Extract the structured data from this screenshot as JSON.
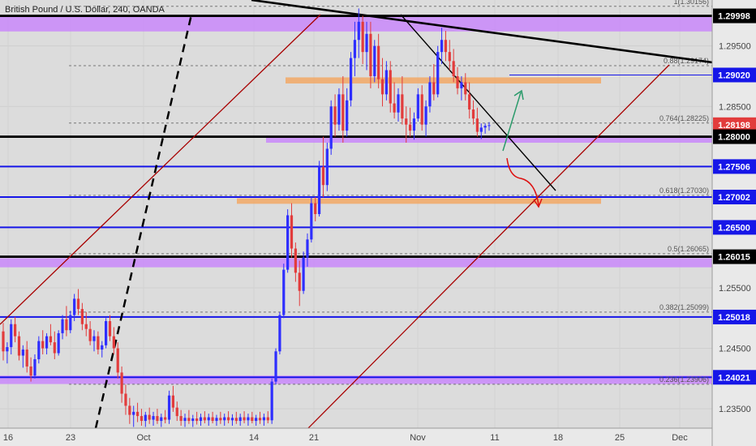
{
  "title": "British Pound / U.S. Dollar, 240, OANDA",
  "colors": {
    "background": "#dcdcdc",
    "axis_bg": "#e9e9e9",
    "bull": "#2e2eff",
    "bear": "#e23c3c",
    "support_blue": "#1616e8",
    "black_line": "#000000",
    "zone_purple": "#c77dff",
    "zone_orange": "#f2a865",
    "channel_red": "#a80000",
    "arrow_green": "#2a9a6a",
    "arrow_red": "#d11"
  },
  "chart_data": {
    "type": "candlestick",
    "title": "British Pound / U.S. Dollar, 240, OANDA",
    "xlabel": "",
    "ylabel": "",
    "y_axis_ticks": [
      "1.29500",
      "1.28500",
      "1.27500",
      "1.26500",
      "1.25500",
      "1.24500",
      "1.23500"
    ],
    "x_axis_ticks": [
      "16",
      "23",
      "Oct",
      "14",
      "21",
      "Nov",
      "11",
      "18",
      "25",
      "Dec"
    ],
    "ylim": [
      1.2318,
      1.3026
    ],
    "price_labels": [
      {
        "value": "1.29998",
        "color": "black"
      },
      {
        "value": "1.29020",
        "color": "blue"
      },
      {
        "value": "1.28198",
        "color": "red"
      },
      {
        "value": "1.28000",
        "color": "black"
      },
      {
        "value": "1.27506",
        "color": "blue"
      },
      {
        "value": "1.27002",
        "color": "blue"
      },
      {
        "value": "1.26500",
        "color": "blue"
      },
      {
        "value": "1.26015",
        "color": "black"
      },
      {
        "value": "1.25018",
        "color": "blue"
      },
      {
        "value": "1.24021",
        "color": "blue"
      }
    ],
    "fib_levels": [
      {
        "label": "1(1.30156)",
        "value": 1.30156
      },
      {
        "label": "0.88(1.29174)",
        "value": 1.29174
      },
      {
        "label": "0.764(1.28225)",
        "value": 1.28225
      },
      {
        "label": "0.618(1.27030)",
        "value": 1.2703
      },
      {
        "label": "0.5(1.26065)",
        "value": 1.26065
      },
      {
        "label": "0.382(1.25099)",
        "value": 1.25099
      },
      {
        "label": "0.236(1.23906)",
        "value": 1.23906
      }
    ],
    "horizontal_levels": [
      {
        "value": 1.29998,
        "color": "black"
      },
      {
        "value": 1.2902,
        "color": "blue"
      },
      {
        "value": 1.28,
        "color": "black"
      },
      {
        "value": 1.27506,
        "color": "blue"
      },
      {
        "value": 1.27002,
        "color": "blue"
      },
      {
        "value": 1.265,
        "color": "blue"
      },
      {
        "value": 1.26015,
        "color": "black"
      },
      {
        "value": 1.25018,
        "color": "blue"
      },
      {
        "value": 1.24021,
        "color": "blue"
      }
    ],
    "zones": [
      {
        "color": "purple",
        "low": 1.2974,
        "high": 1.3
      },
      {
        "color": "orange",
        "low": 1.2888,
        "high": 1.2898
      },
      {
        "color": "purple",
        "low": 1.279,
        "high": 1.28
      },
      {
        "color": "orange",
        "low": 1.2689,
        "high": 1.2698
      },
      {
        "color": "purple",
        "low": 1.2584,
        "high": 1.2599
      },
      {
        "color": "purple",
        "low": 1.2391,
        "high": 1.2405
      }
    ],
    "candles": [
      [
        1.2478,
        1.2492,
        1.243,
        1.2445
      ],
      [
        1.2445,
        1.246,
        1.2425,
        1.2452
      ],
      [
        1.2452,
        1.2498,
        1.244,
        1.249
      ],
      [
        1.249,
        1.2502,
        1.246,
        1.247
      ],
      [
        1.247,
        1.2478,
        1.243,
        1.2438
      ],
      [
        1.2438,
        1.2455,
        1.2418,
        1.2448
      ],
      [
        1.2448,
        1.2462,
        1.241,
        1.242
      ],
      [
        1.242,
        1.2435,
        1.2395,
        1.2405
      ],
      [
        1.2405,
        1.244,
        1.24,
        1.2432
      ],
      [
        1.2432,
        1.247,
        1.2425,
        1.2462
      ],
      [
        1.2462,
        1.248,
        1.244,
        1.245
      ],
      [
        1.245,
        1.2475,
        1.244,
        1.247
      ],
      [
        1.247,
        1.249,
        1.2455,
        1.246
      ],
      [
        1.246,
        1.2478,
        1.2432,
        1.2442
      ],
      [
        1.2442,
        1.248,
        1.2438,
        1.2475
      ],
      [
        1.2475,
        1.2505,
        1.2465,
        1.2498
      ],
      [
        1.2498,
        1.252,
        1.247,
        1.248
      ],
      [
        1.248,
        1.2512,
        1.2475,
        1.2505
      ],
      [
        1.2505,
        1.254,
        1.2495,
        1.2532
      ],
      [
        1.2532,
        1.2548,
        1.2505,
        1.2515
      ],
      [
        1.2515,
        1.2525,
        1.248,
        1.249
      ],
      [
        1.249,
        1.251,
        1.247,
        1.2482
      ],
      [
        1.2482,
        1.2495,
        1.2455,
        1.2462
      ],
      [
        1.2462,
        1.248,
        1.2445,
        1.247
      ],
      [
        1.247,
        1.2478,
        1.244,
        1.2448
      ],
      [
        1.2448,
        1.2462,
        1.2435,
        1.2455
      ],
      [
        1.2455,
        1.25,
        1.245,
        1.2495
      ],
      [
        1.2495,
        1.2505,
        1.2462,
        1.247
      ],
      [
        1.247,
        1.2485,
        1.244,
        1.245
      ],
      [
        1.245,
        1.246,
        1.24,
        1.241
      ],
      [
        1.241,
        1.242,
        1.236,
        1.2375
      ],
      [
        1.2375,
        1.239,
        1.234,
        1.2355
      ],
      [
        1.2355,
        1.2368,
        1.2325,
        1.234
      ],
      [
        1.234,
        1.2355,
        1.232,
        1.2345
      ],
      [
        1.2345,
        1.236,
        1.2328,
        1.2338
      ],
      [
        1.2338,
        1.235,
        1.2322,
        1.233
      ],
      [
        1.233,
        1.2345,
        1.232,
        1.234
      ],
      [
        1.234,
        1.2352,
        1.2325,
        1.2332
      ],
      [
        1.2332,
        1.2345,
        1.2322,
        1.2338
      ],
      [
        1.2338,
        1.235,
        1.2325,
        1.233
      ],
      [
        1.233,
        1.2342,
        1.232,
        1.2336
      ],
      [
        1.2336,
        1.2348,
        1.2326,
        1.2332
      ],
      [
        1.2332,
        1.238,
        1.2325,
        1.2372
      ],
      [
        1.2372,
        1.2388,
        1.2345,
        1.2352
      ],
      [
        1.2352,
        1.2362,
        1.233,
        1.2338
      ],
      [
        1.2338,
        1.2348,
        1.2322,
        1.233
      ],
      [
        1.233,
        1.2342,
        1.232,
        1.2335
      ],
      [
        1.2335,
        1.2348,
        1.2325,
        1.233
      ],
      [
        1.233,
        1.234,
        1.232,
        1.2334
      ],
      [
        1.2334,
        1.2345,
        1.2324,
        1.233
      ],
      [
        1.233,
        1.2342,
        1.2322,
        1.2336
      ],
      [
        1.2336,
        1.2346,
        1.2326,
        1.2331
      ],
      [
        1.2331,
        1.2342,
        1.2322,
        1.2336
      ],
      [
        1.2336,
        1.2345,
        1.2326,
        1.233
      ],
      [
        1.233,
        1.234,
        1.2322,
        1.2335
      ],
      [
        1.2335,
        1.2345,
        1.2325,
        1.2331
      ],
      [
        1.2331,
        1.2342,
        1.2322,
        1.2336
      ],
      [
        1.2336,
        1.2346,
        1.2326,
        1.2331
      ],
      [
        1.2331,
        1.2341,
        1.2322,
        1.2335
      ],
      [
        1.2335,
        1.2345,
        1.2325,
        1.233
      ],
      [
        1.233,
        1.2342,
        1.2322,
        1.2336
      ],
      [
        1.2336,
        1.2346,
        1.2326,
        1.2331
      ],
      [
        1.2331,
        1.2342,
        1.2322,
        1.2336
      ],
      [
        1.2336,
        1.2345,
        1.2326,
        1.233
      ],
      [
        1.233,
        1.234,
        1.2322,
        1.2335
      ],
      [
        1.2335,
        1.2345,
        1.2325,
        1.2331
      ],
      [
        1.2331,
        1.2342,
        1.2322,
        1.2336
      ],
      [
        1.2336,
        1.2346,
        1.2326,
        1.2331
      ],
      [
        1.2331,
        1.24,
        1.2325,
        1.2395
      ],
      [
        1.2395,
        1.245,
        1.239,
        1.2445
      ],
      [
        1.2445,
        1.251,
        1.244,
        1.2505
      ],
      [
        1.2505,
        1.259,
        1.25,
        1.258
      ],
      [
        1.258,
        1.268,
        1.2575,
        1.267
      ],
      [
        1.267,
        1.269,
        1.26,
        1.2615
      ],
      [
        1.2615,
        1.2625,
        1.256,
        1.2575
      ],
      [
        1.2575,
        1.2595,
        1.252,
        1.2545
      ],
      [
        1.2545,
        1.261,
        1.254,
        1.26
      ],
      [
        1.26,
        1.264,
        1.2585,
        1.263
      ],
      [
        1.263,
        1.27,
        1.2625,
        1.269
      ],
      [
        1.269,
        1.27,
        1.266,
        1.2672
      ],
      [
        1.2672,
        1.276,
        1.2668,
        1.275
      ],
      [
        1.275,
        1.28,
        1.27,
        1.272
      ],
      [
        1.272,
        1.279,
        1.271,
        1.278
      ],
      [
        1.278,
        1.286,
        1.277,
        1.285
      ],
      [
        1.285,
        1.287,
        1.28,
        1.282
      ],
      [
        1.282,
        1.288,
        1.281,
        1.287
      ],
      [
        1.287,
        1.29,
        1.279,
        1.281
      ],
      [
        1.281,
        1.288,
        1.28,
        1.286
      ],
      [
        1.286,
        1.294,
        1.285,
        1.293
      ],
      [
        1.293,
        1.299,
        1.29,
        1.296
      ],
      [
        1.296,
        1.3012,
        1.293,
        1.299
      ],
      [
        1.299,
        1.3,
        1.292,
        1.294
      ],
      [
        1.294,
        1.299,
        1.291,
        1.297
      ],
      [
        1.297,
        1.299,
        1.288,
        1.29
      ],
      [
        1.29,
        1.296,
        1.289,
        1.295
      ],
      [
        1.295,
        1.297,
        1.288,
        1.2895
      ],
      [
        1.2895,
        1.293,
        1.285,
        1.287
      ],
      [
        1.287,
        1.2925,
        1.286,
        1.291
      ],
      [
        1.291,
        1.2925,
        1.284,
        1.2855
      ],
      [
        1.2855,
        1.289,
        1.283,
        1.284
      ],
      [
        1.284,
        1.288,
        1.2825,
        1.287
      ],
      [
        1.287,
        1.29,
        1.282,
        1.283
      ],
      [
        1.283,
        1.285,
        1.279,
        1.282
      ],
      [
        1.282,
        1.2848,
        1.28,
        1.281
      ],
      [
        1.281,
        1.284,
        1.2795,
        1.283
      ],
      [
        1.283,
        1.288,
        1.2825,
        1.287
      ],
      [
        1.287,
        1.2885,
        1.281,
        1.282
      ],
      [
        1.282,
        1.286,
        1.28,
        1.285
      ],
      [
        1.285,
        1.29,
        1.284,
        1.289
      ],
      [
        1.289,
        1.292,
        1.286,
        1.287
      ],
      [
        1.287,
        1.295,
        1.2865,
        1.294
      ],
      [
        1.294,
        1.298,
        1.292,
        1.296
      ],
      [
        1.296,
        1.2975,
        1.2925,
        1.294
      ],
      [
        1.294,
        1.296,
        1.291,
        1.2925
      ],
      [
        1.2925,
        1.2945,
        1.289,
        1.29
      ],
      [
        1.29,
        1.2915,
        1.287,
        1.288
      ],
      [
        1.288,
        1.29,
        1.286,
        1.289
      ],
      [
        1.289,
        1.2905,
        1.286,
        1.287
      ],
      [
        1.287,
        1.289,
        1.283,
        1.2845
      ],
      [
        1.2845,
        1.286,
        1.282,
        1.283
      ],
      [
        1.283,
        1.2848,
        1.28,
        1.2808
      ],
      [
        1.2808,
        1.2822,
        1.2796,
        1.2815
      ],
      [
        1.2815,
        1.2822,
        1.2805,
        1.2818
      ],
      [
        1.2818,
        1.2824,
        1.281,
        1.2819
      ]
    ]
  }
}
